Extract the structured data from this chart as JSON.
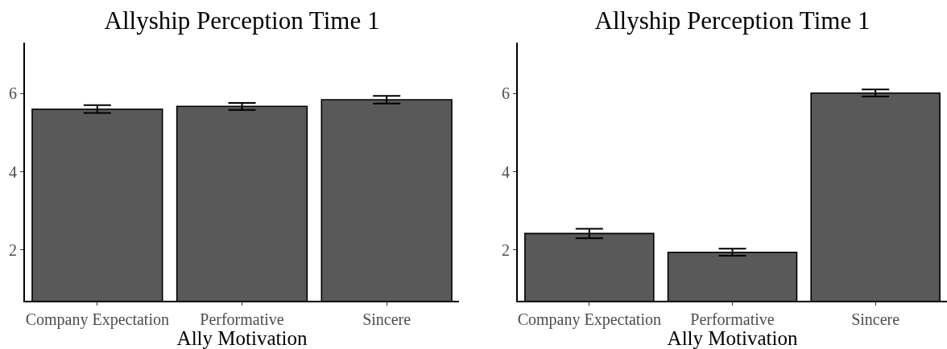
{
  "chart_data": [
    {
      "type": "bar",
      "title": "Allyship Perception Time 1",
      "xlabel": "Ally Motivation",
      "categories": [
        "Company Expectation",
        "Performative",
        "Sincere"
      ],
      "values": [
        5.6,
        5.67,
        5.84
      ],
      "errors": [
        0.1,
        0.09,
        0.1
      ],
      "color": "#595959",
      "ylim": [
        0.7,
        7.3
      ],
      "yticks": [
        2,
        4,
        6
      ]
    },
    {
      "type": "bar",
      "title": "Allyship Perception Time 1",
      "xlabel": "Ally Motivation",
      "categories": [
        "Company Expectation",
        "Performative",
        "Sincere"
      ],
      "values": [
        2.42,
        1.94,
        6.01
      ],
      "errors": [
        0.12,
        0.09,
        0.09
      ],
      "color": "#595959",
      "ylim": [
        0.7,
        7.3
      ],
      "yticks": [
        2,
        4,
        6
      ]
    }
  ]
}
